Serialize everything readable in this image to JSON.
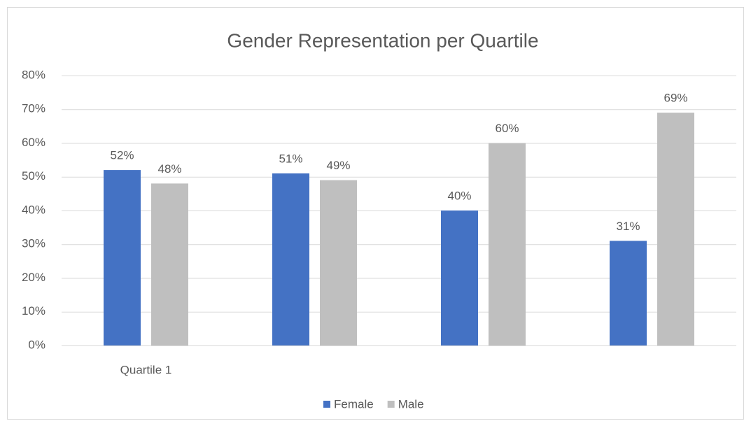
{
  "chart_data": {
    "type": "bar",
    "title": "Gender Representation per Quartile",
    "categories": [
      "Quartile 1",
      null,
      null,
      null
    ],
    "series": [
      {
        "name": "Female",
        "color": "#4472c4",
        "values": [
          52,
          51,
          40,
          31
        ],
        "value_labels": [
          "52%",
          "51%",
          "40%",
          "31%"
        ]
      },
      {
        "name": "Male",
        "color": "#bfbfbf",
        "values": [
          48,
          49,
          60,
          69
        ],
        "value_labels": [
          "48%",
          "49%",
          "60%",
          "69%"
        ]
      }
    ],
    "ylim": [
      0,
      80
    ],
    "yticks": [
      {
        "value": 0,
        "label": "0%"
      },
      {
        "value": 10,
        "label": "10%"
      },
      {
        "value": 20,
        "label": "20%"
      },
      {
        "value": 30,
        "label": "30%"
      },
      {
        "value": 40,
        "label": "40%"
      },
      {
        "value": 50,
        "label": "50%"
      },
      {
        "value": 60,
        "label": "60%"
      },
      {
        "value": 70,
        "label": "70%"
      },
      {
        "value": 80,
        "label": "80%"
      }
    ],
    "grid": true,
    "legend": "bottom"
  }
}
